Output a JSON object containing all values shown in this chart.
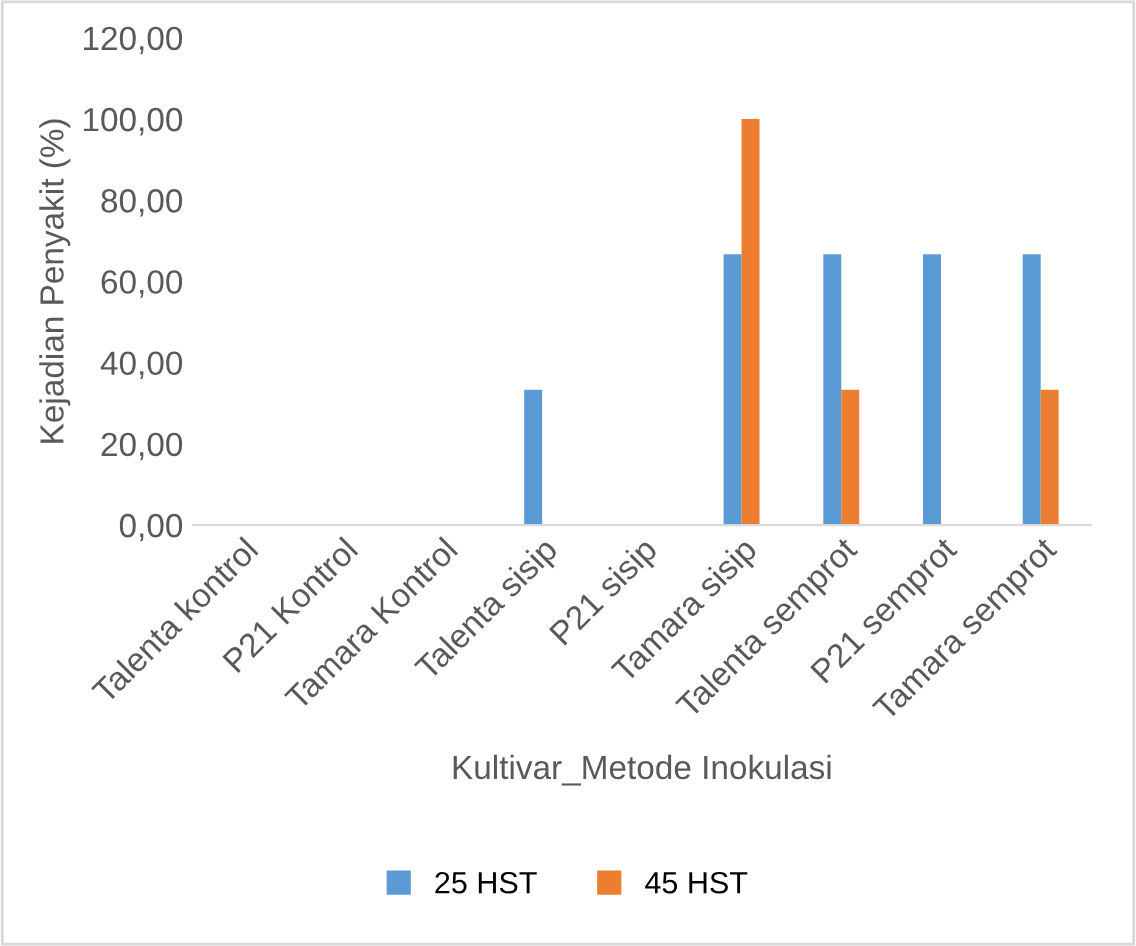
{
  "chart_data": {
    "type": "bar",
    "xlabel": "Kultivar_Metode Inokulasi",
    "ylabel": "Kejadian Penyakit (%)",
    "categories": [
      "Talenta kontrol",
      "P21 Kontrol",
      "Tamara Kontrol",
      "Talenta sisip",
      "P21 sisip",
      "Tamara sisip",
      "Talenta semprot",
      "P21 semprot",
      "Tamara semprot"
    ],
    "series": [
      {
        "name": "25 HST",
        "color": "#5b9bd5",
        "values": [
          0,
          0,
          0,
          33.3,
          0,
          66.7,
          66.7,
          66.7,
          66.7
        ]
      },
      {
        "name": "45 HST",
        "color": "#ed7d31",
        "values": [
          0,
          0,
          0,
          0,
          0,
          100,
          33.3,
          0,
          33.3
        ]
      }
    ],
    "ylim": [
      0,
      120
    ],
    "yticks": [
      {
        "value": 0,
        "label": "0,00"
      },
      {
        "value": 20,
        "label": "20,00"
      },
      {
        "value": 40,
        "label": "40,00"
      },
      {
        "value": 60,
        "label": "60,00"
      },
      {
        "value": 80,
        "label": "80,00"
      },
      {
        "value": 100,
        "label": "100,00"
      },
      {
        "value": 120,
        "label": "120,00"
      }
    ],
    "grid": false,
    "legend": "bottom"
  }
}
